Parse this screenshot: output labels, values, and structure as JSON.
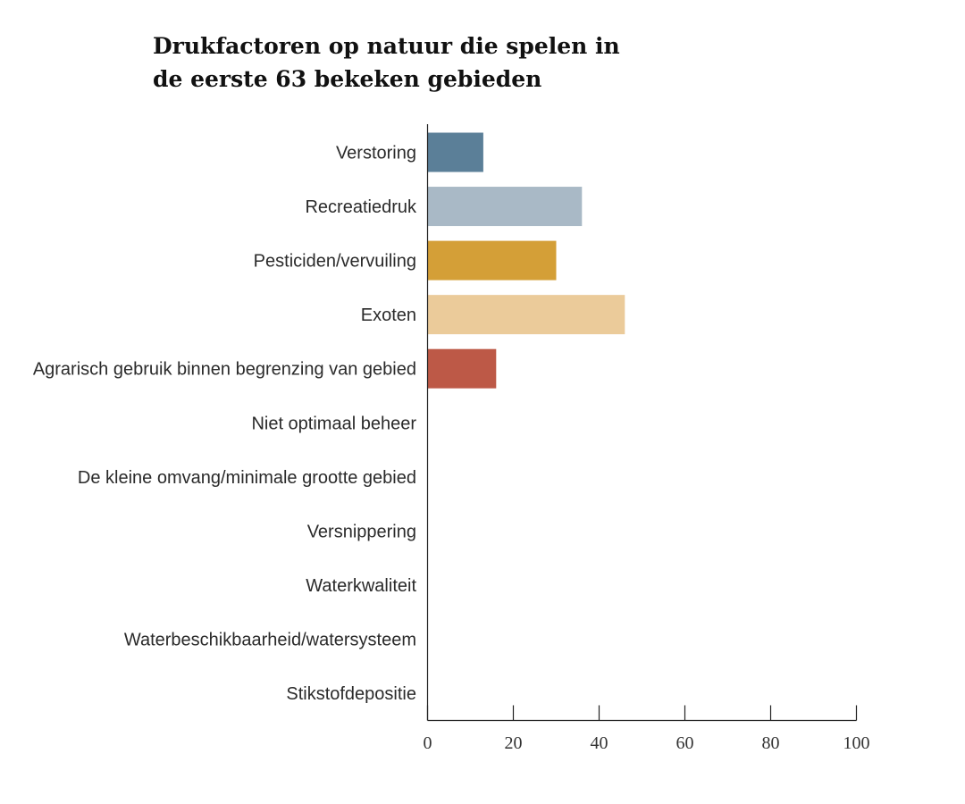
{
  "chart_data": {
    "type": "bar",
    "orientation": "horizontal",
    "title_lines": [
      "Drukfactoren op natuur die spelen in",
      "de eerste 63 bekeken gebieden"
    ],
    "categories": [
      "Verstoring",
      "Recreatiedruk",
      "Pesticiden/vervuiling",
      "Exoten",
      "Agrarisch gebruik binnen begrenzing van gebied",
      "Niet optimaal beheer",
      "De kleine omvang/minimale grootte gebied",
      "Versnippering",
      "Waterkwaliteit",
      "Waterbeschikbaarheid/watersysteem",
      "Stikstofdepositie"
    ],
    "values": [
      13,
      36,
      30,
      46,
      16,
      0,
      0,
      0,
      0,
      0,
      0
    ],
    "colors": [
      "#5b7f98",
      "#a9b9c6",
      "#d49f37",
      "#ebcb9a",
      "#bd5947",
      "#ffffff",
      "#ffffff",
      "#ffffff",
      "#ffffff",
      "#ffffff",
      "#ffffff"
    ],
    "xlim": [
      0,
      100
    ],
    "xticks": [
      "0",
      "20",
      "40",
      "60",
      "80",
      "100"
    ],
    "xlabel": "",
    "ylabel": "",
    "grid": false,
    "legend": "none"
  }
}
